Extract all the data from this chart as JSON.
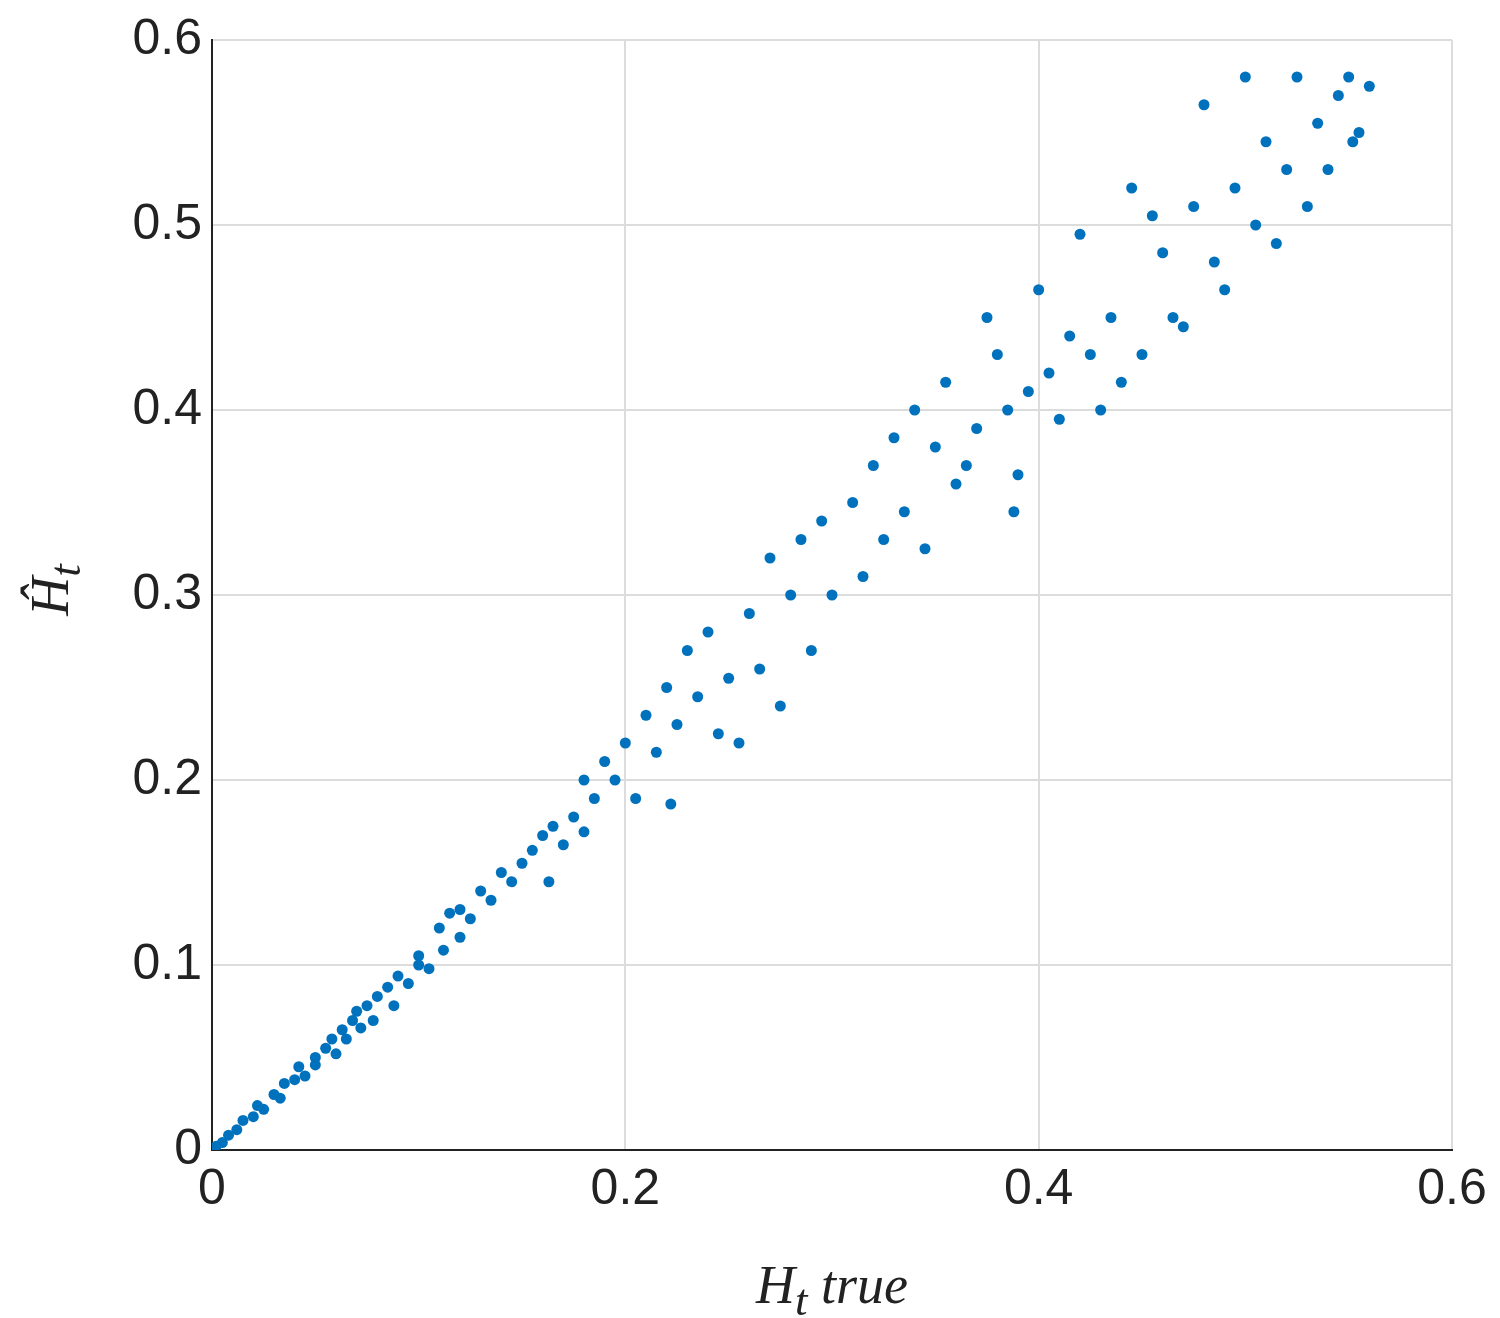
{
  "chart_data": {
    "type": "scatter",
    "xlabel": "H$_{t}$ true",
    "ylabel": "Ĥ$_{t}$",
    "xlim": [
      0,
      0.6
    ],
    "xticks": [
      0,
      0.2,
      0.4,
      0.6
    ],
    "ylim": [
      0,
      0.6
    ],
    "yticks": [
      0,
      0.1,
      0.2,
      0.3,
      0.4,
      0.5,
      0.6
    ],
    "grid": true,
    "marker": "circle",
    "series": [
      {
        "color": "#0072bd",
        "x": [
          0.002,
          0.005,
          0.008,
          0.012,
          0.015,
          0.02,
          0.022,
          0.025,
          0.03,
          0.033,
          0.035,
          0.04,
          0.042,
          0.045,
          0.05,
          0.05,
          0.055,
          0.058,
          0.06,
          0.063,
          0.065,
          0.068,
          0.07,
          0.072,
          0.075,
          0.078,
          0.08,
          0.085,
          0.088,
          0.09,
          0.095,
          0.1,
          0.1,
          0.105,
          0.11,
          0.112,
          0.115,
          0.12,
          0.12,
          0.125,
          0.13,
          0.135,
          0.14,
          0.145,
          0.15,
          0.155,
          0.16,
          0.163,
          0.165,
          0.17,
          0.175,
          0.18,
          0.18,
          0.185,
          0.19,
          0.195,
          0.2,
          0.205,
          0.21,
          0.215,
          0.22,
          0.222,
          0.225,
          0.23,
          0.235,
          0.24,
          0.245,
          0.25,
          0.255,
          0.26,
          0.265,
          0.27,
          0.275,
          0.28,
          0.285,
          0.29,
          0.295,
          0.3,
          0.31,
          0.315,
          0.32,
          0.325,
          0.33,
          0.335,
          0.34,
          0.345,
          0.35,
          0.355,
          0.36,
          0.365,
          0.37,
          0.375,
          0.38,
          0.385,
          0.388,
          0.39,
          0.395,
          0.4,
          0.405,
          0.41,
          0.415,
          0.42,
          0.425,
          0.43,
          0.435,
          0.44,
          0.445,
          0.45,
          0.455,
          0.46,
          0.465,
          0.47,
          0.475,
          0.48,
          0.485,
          0.49,
          0.495,
          0.5,
          0.505,
          0.51,
          0.515,
          0.52,
          0.525,
          0.53,
          0.535,
          0.54,
          0.545,
          0.55,
          0.552,
          0.555,
          0.56
        ],
        "values": [
          0.002,
          0.004,
          0.008,
          0.011,
          0.016,
          0.018,
          0.024,
          0.022,
          0.03,
          0.028,
          0.036,
          0.038,
          0.045,
          0.04,
          0.05,
          0.046,
          0.055,
          0.06,
          0.052,
          0.065,
          0.06,
          0.07,
          0.075,
          0.066,
          0.078,
          0.07,
          0.083,
          0.088,
          0.078,
          0.094,
          0.09,
          0.1,
          0.105,
          0.098,
          0.12,
          0.108,
          0.128,
          0.115,
          0.13,
          0.125,
          0.14,
          0.135,
          0.15,
          0.145,
          0.155,
          0.162,
          0.17,
          0.145,
          0.175,
          0.165,
          0.18,
          0.172,
          0.2,
          0.19,
          0.21,
          0.2,
          0.22,
          0.19,
          0.235,
          0.215,
          0.25,
          0.187,
          0.23,
          0.27,
          0.245,
          0.28,
          0.225,
          0.255,
          0.22,
          0.29,
          0.26,
          0.32,
          0.24,
          0.3,
          0.33,
          0.27,
          0.34,
          0.3,
          0.35,
          0.31,
          0.37,
          0.33,
          0.385,
          0.345,
          0.4,
          0.325,
          0.38,
          0.415,
          0.36,
          0.37,
          0.39,
          0.45,
          0.43,
          0.4,
          0.345,
          0.365,
          0.41,
          0.465,
          0.42,
          0.395,
          0.44,
          0.495,
          0.43,
          0.4,
          0.45,
          0.415,
          0.52,
          0.43,
          0.505,
          0.485,
          0.45,
          0.445,
          0.51,
          0.565,
          0.48,
          0.465,
          0.52,
          0.58,
          0.5,
          0.545,
          0.49,
          0.53,
          0.58,
          0.51,
          0.555,
          0.53,
          0.57,
          0.58,
          0.545,
          0.55,
          0.575
        ]
      }
    ]
  }
}
